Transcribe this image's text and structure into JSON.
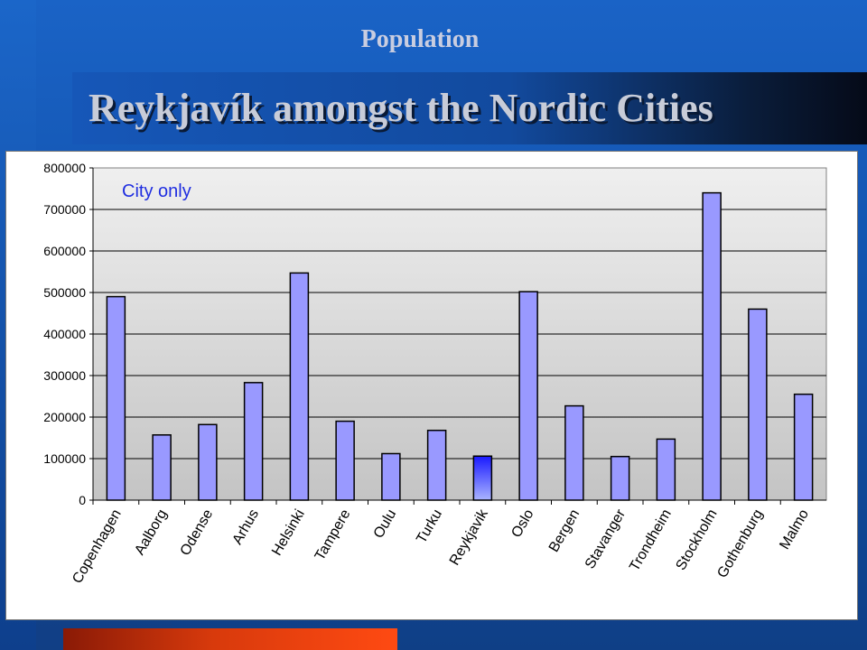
{
  "slide": {
    "kicker": "Population",
    "title": "Reykjavík amongst the Nordic Cities"
  },
  "chart_data": {
    "type": "bar",
    "annotation": "City only",
    "categories": [
      "Copenhagen",
      "Aalborg",
      "Odense",
      "Arhus",
      "Helsinki",
      "Tampere",
      "Oulu",
      "Turku",
      "Reykjavik",
      "Oslo",
      "Bergen",
      "Stavanger",
      "Trondheim",
      "Stockholm",
      "Gothenburg",
      "Malmo"
    ],
    "values": [
      490000,
      157000,
      182000,
      283000,
      547000,
      190000,
      112000,
      168000,
      106000,
      502000,
      227000,
      105000,
      147000,
      740000,
      460000,
      255000
    ],
    "highlight_category": "Reykjavik",
    "ylim": [
      0,
      800000
    ],
    "yticks": [
      0,
      100000,
      200000,
      300000,
      400000,
      500000,
      600000,
      700000,
      800000
    ],
    "grid": true,
    "bar_color": "#9999ff",
    "highlight_color": "#1a1aff"
  }
}
